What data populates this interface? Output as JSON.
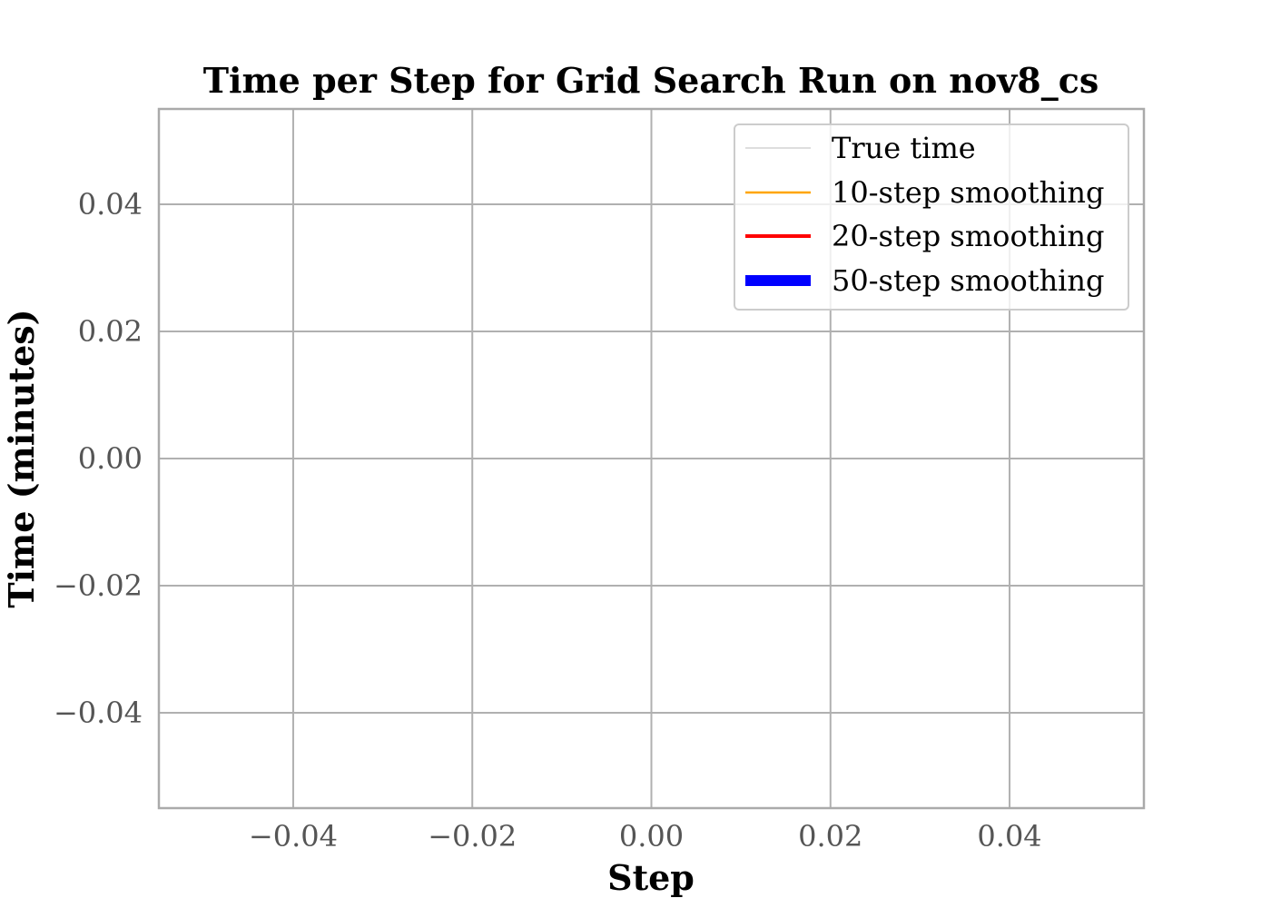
{
  "chart_data": {
    "type": "line",
    "title": "Time per Step for Grid Search Run on nov8_cs",
    "xlabel": "Step",
    "ylabel": "Time (minutes)",
    "xlim": [
      -0.055,
      0.055
    ],
    "ylim": [
      -0.055,
      0.055
    ],
    "xticks": [
      -0.04,
      -0.02,
      0.0,
      0.02,
      0.04
    ],
    "xtick_labels": [
      "−0.04",
      "−0.02",
      "0.00",
      "0.02",
      "0.04"
    ],
    "yticks": [
      0.04,
      0.02,
      0.0,
      -0.02,
      -0.04
    ],
    "ytick_labels": [
      "0.04",
      "0.02",
      "0.00",
      "−0.02",
      "−0.04"
    ],
    "grid": true,
    "legend_position": "top-right",
    "series": [
      {
        "name": "True time",
        "color": "#d3d3d3",
        "x": [],
        "y": []
      },
      {
        "name": "10-step smoothing",
        "color": "#ffa500",
        "x": [],
        "y": []
      },
      {
        "name": "20-step smoothing",
        "color": "#ff0000",
        "x": [],
        "y": []
      },
      {
        "name": "50-step smoothing",
        "color": "#0000ff",
        "x": [],
        "y": []
      }
    ]
  }
}
